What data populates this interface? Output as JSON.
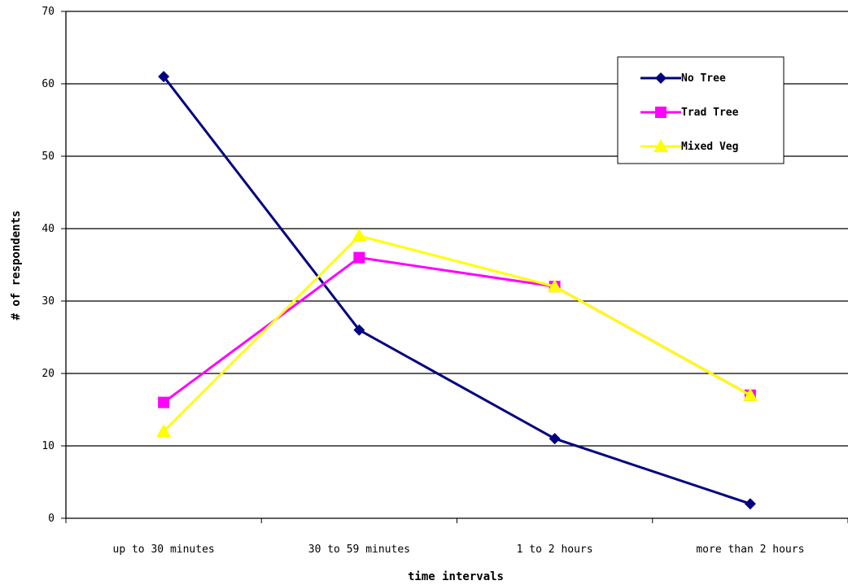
{
  "chart_data": {
    "type": "line",
    "title": "",
    "xlabel": "time intervals",
    "ylabel": "# of respondents",
    "categories": [
      "up to 30 minutes",
      "30 to 59 minutes",
      "1 to 2 hours",
      "more than 2 hours"
    ],
    "ylim": [
      0,
      70
    ],
    "yticks": [
      0,
      10,
      20,
      30,
      40,
      50,
      60,
      70
    ],
    "grid": true,
    "legend_position": "top-right",
    "series": [
      {
        "name": "No Tree",
        "values": [
          61,
          26,
          11,
          2
        ],
        "color": "#000080",
        "marker": "diamond"
      },
      {
        "name": "Trad Tree",
        "values": [
          16,
          36,
          32,
          17
        ],
        "color": "#ff00ff",
        "marker": "square"
      },
      {
        "name": "Mixed Veg",
        "values": [
          12,
          39,
          32,
          17
        ],
        "color": "#ffff00",
        "marker": "triangle"
      }
    ]
  }
}
